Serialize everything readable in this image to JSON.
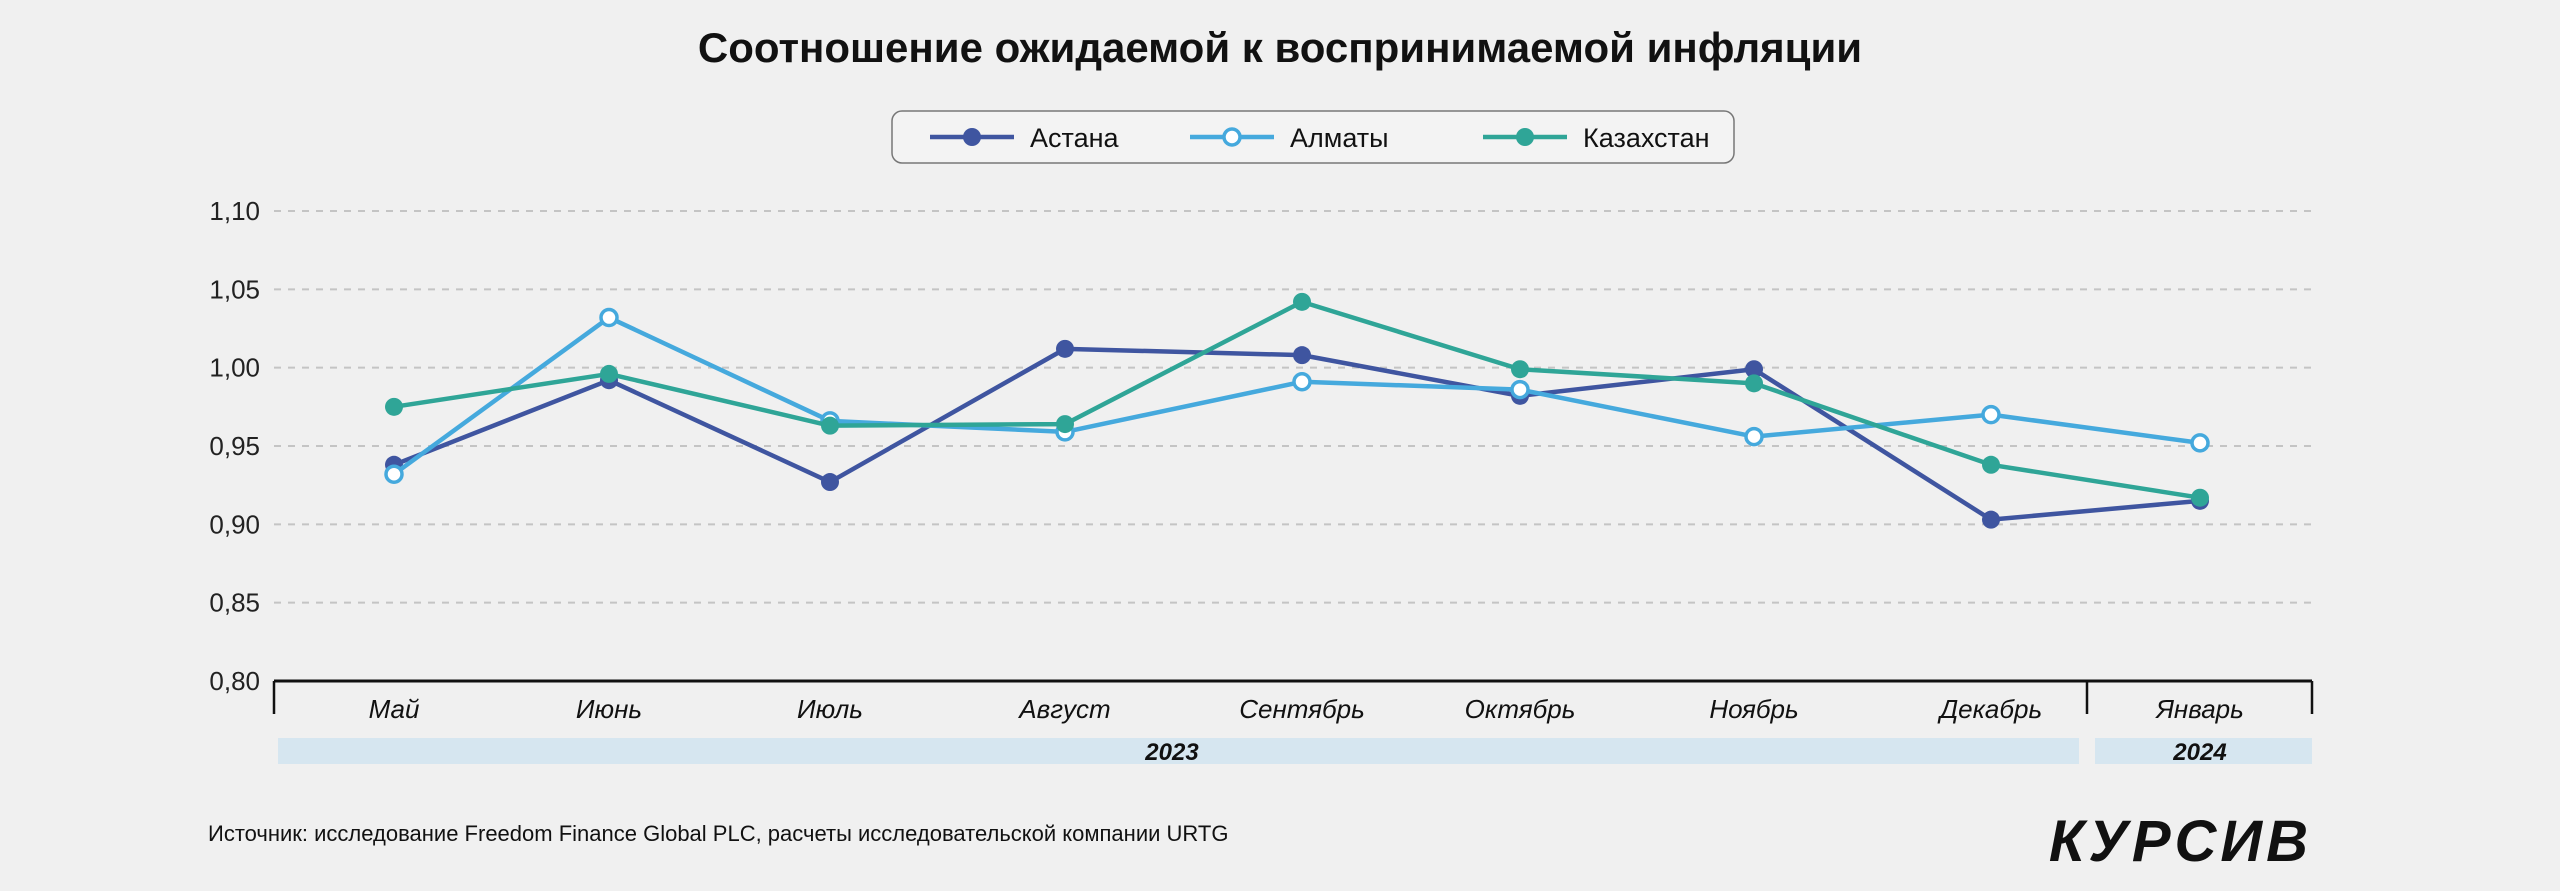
{
  "chart_data": {
    "type": "line",
    "title": "Соотношение ожидаемой к воспринимаемой инфляции",
    "categories": [
      "Май",
      "Июнь",
      "Июль",
      "Август",
      "Сентябрь",
      "Октябрь",
      "Ноябрь",
      "Декабрь",
      "Январь"
    ],
    "year_groups": [
      {
        "label": "2023",
        "months": 8
      },
      {
        "label": "2024",
        "months": 1
      }
    ],
    "ylim": [
      0.8,
      1.1
    ],
    "yticks": [
      "0,80",
      "0,85",
      "0,90",
      "0,95",
      "1,00",
      "1,05",
      "1,10"
    ],
    "grid": true,
    "legend_placement": "top-center",
    "series": [
      {
        "name": "Астана",
        "color": "#3f55a0",
        "marker": "filled",
        "values": [
          0.938,
          0.992,
          0.927,
          1.012,
          1.008,
          0.982,
          0.999,
          0.903,
          0.915
        ]
      },
      {
        "name": "Алматы",
        "color": "#45a9dd",
        "marker": "hollow",
        "values": [
          0.932,
          1.032,
          0.966,
          0.959,
          0.991,
          0.986,
          0.956,
          0.97,
          0.952
        ]
      },
      {
        "name": "Казахстан",
        "color": "#2fa597",
        "marker": "filled",
        "values": [
          0.975,
          0.996,
          0.963,
          0.964,
          1.042,
          0.999,
          0.99,
          0.938,
          0.917
        ]
      }
    ]
  },
  "source": "Источник: исследование Freedom Finance Global PLC, расчеты исследовательской компании URTG",
  "logo": "КУРСИВ"
}
